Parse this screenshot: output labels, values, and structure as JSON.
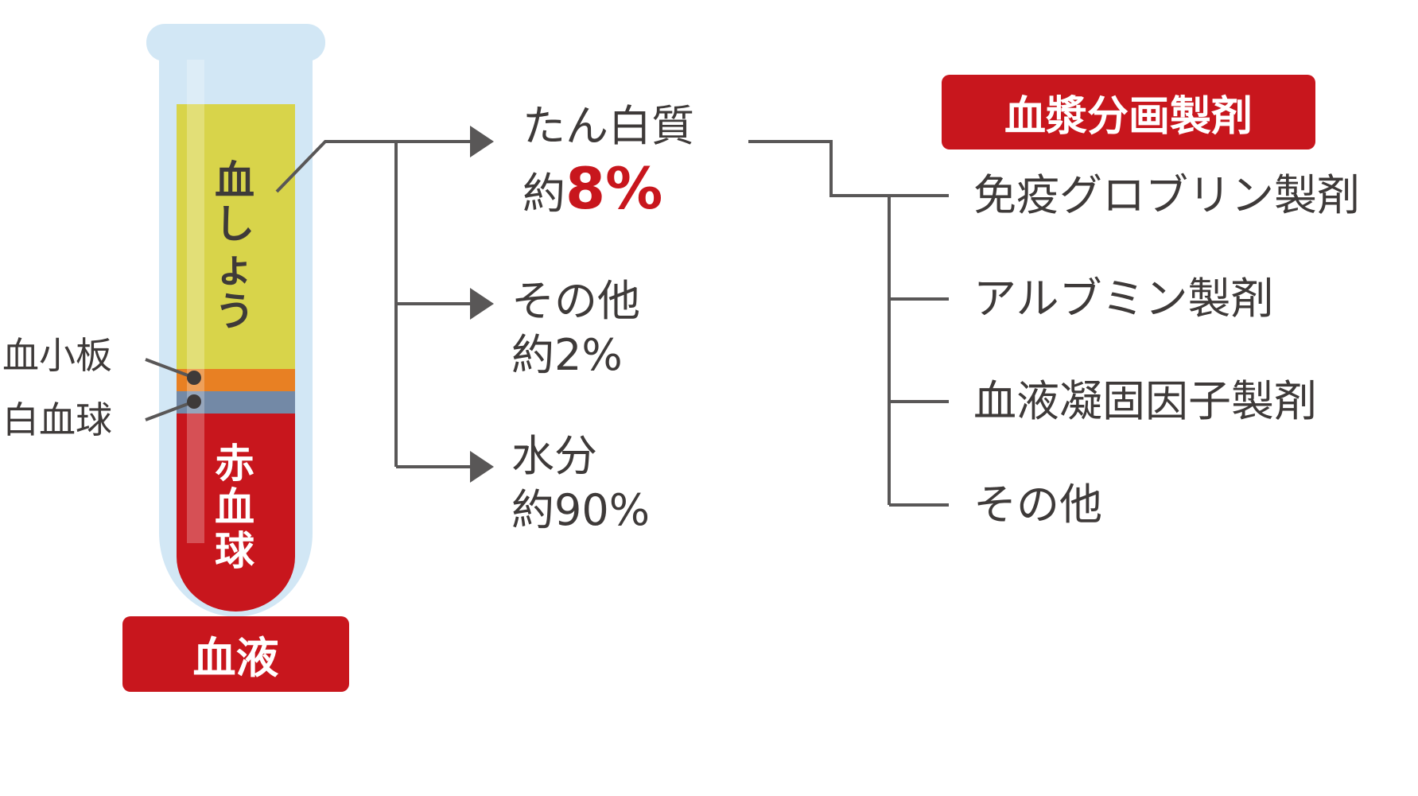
{
  "colors": {
    "text": "#3e3a39",
    "accent_red": "#c8161d",
    "plasma": "#d8d44a",
    "platelets": "#e88023",
    "white_cells": "#7389a6",
    "tube": "#d2e7f5",
    "lines": "#595757"
  },
  "tube": {
    "label": "血液",
    "plasma_label": "血しょう",
    "red_cells_label": "赤血球",
    "platelets_label": "血小板",
    "white_cells_label": "白血球"
  },
  "plasma_components": [
    {
      "name": "たん白質",
      "prefix": "約",
      "value": "8%"
    },
    {
      "name": "その他",
      "prefix": "約",
      "value": "2%"
    },
    {
      "name": "水分",
      "prefix": "約",
      "value": "90%"
    }
  ],
  "fractionation": {
    "title": "血漿分画製剤",
    "items": [
      "免疫グロブリン製剤",
      "アルブミン製剤",
      "血液凝固因子製剤",
      "その他"
    ]
  }
}
